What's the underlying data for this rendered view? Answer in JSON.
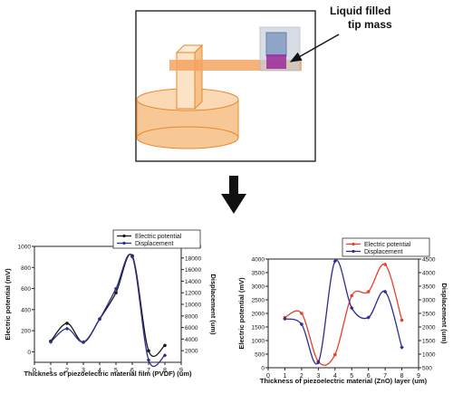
{
  "diagram": {
    "callout": [
      "Liquid filled",
      "tip mass"
    ]
  },
  "colors": {
    "black": "#1a1a1a",
    "navy": "#2e2e8f",
    "red": "#e8402a",
    "orange_fill": "#f7c795",
    "orange_stroke": "#e8892c",
    "tip_blue": "#8fa6c8",
    "tip_purple": "#9b2a9b",
    "tip_box": "#c7cfd9"
  },
  "chart_data": [
    {
      "type": "line",
      "xlabel": "Thickness of piezoelectric material film (PVDF) (um)",
      "ylabel": "Electric potential (mV)",
      "y2label": "Displacement (um)",
      "xlim": [
        0,
        9
      ],
      "ylim": [
        -100,
        1000
      ],
      "y2lim": [
        0,
        20000
      ],
      "xticks": [
        "0",
        "1",
        "2",
        "3",
        "4",
        "5",
        "6",
        "7",
        "8",
        "9"
      ],
      "yticks": [
        "0",
        "200",
        "400",
        "600",
        "800",
        "1000"
      ],
      "y2ticks": [
        "2000",
        "4000",
        "6000",
        "8000",
        "10000",
        "12000",
        "14000",
        "16000",
        "18000",
        "20000"
      ],
      "legend_position": "top-center",
      "series": [
        {
          "name": "Electric potential",
          "axis": "left",
          "color": "#1a1a1a",
          "x": [
            1,
            2,
            3,
            4,
            5,
            6,
            7,
            8
          ],
          "values": [
            100,
            270,
            90,
            310,
            560,
            910,
            10,
            60
          ]
        },
        {
          "name": "Displacement",
          "axis": "right",
          "color": "#2e2e8f",
          "x": [
            1,
            2,
            3,
            4,
            5,
            6,
            7,
            8
          ],
          "values": [
            3500,
            5800,
            3500,
            7500,
            12700,
            18200,
            400,
            1200
          ]
        }
      ]
    },
    {
      "type": "line",
      "xlabel": "Thickness of piezoelectric material (ZnO) layer (um)",
      "ylabel": "Electric potential (mV)",
      "y2label": "Displacement (um)",
      "xlim": [
        0,
        9
      ],
      "ylim": [
        0,
        4000
      ],
      "y2lim": [
        500,
        4500
      ],
      "xticks": [
        "0",
        "1",
        "2",
        "3",
        "4",
        "5",
        "6",
        "7",
        "8",
        "9"
      ],
      "yticks": [
        "0",
        "500",
        "1000",
        "1500",
        "2000",
        "2500",
        "3000",
        "3500",
        "4000"
      ],
      "y2ticks": [
        "500",
        "1000",
        "1500",
        "2000",
        "2500",
        "3000",
        "3500",
        "4000",
        "4500"
      ],
      "legend_position": "top-center",
      "series": [
        {
          "name": "Electric potential",
          "axis": "left",
          "color": "#e8402a",
          "x": [
            1,
            2,
            3,
            4,
            5,
            6,
            7,
            8
          ],
          "values": [
            1850,
            2000,
            230,
            480,
            2650,
            2800,
            3800,
            1750
          ]
        },
        {
          "name": "Displacement",
          "axis": "right",
          "color": "#2e2e8f",
          "x": [
            1,
            2,
            3,
            4,
            5,
            6,
            7,
            8
          ],
          "values": [
            2300,
            2100,
            700,
            4420,
            2700,
            2350,
            3300,
            1250
          ]
        }
      ]
    }
  ]
}
